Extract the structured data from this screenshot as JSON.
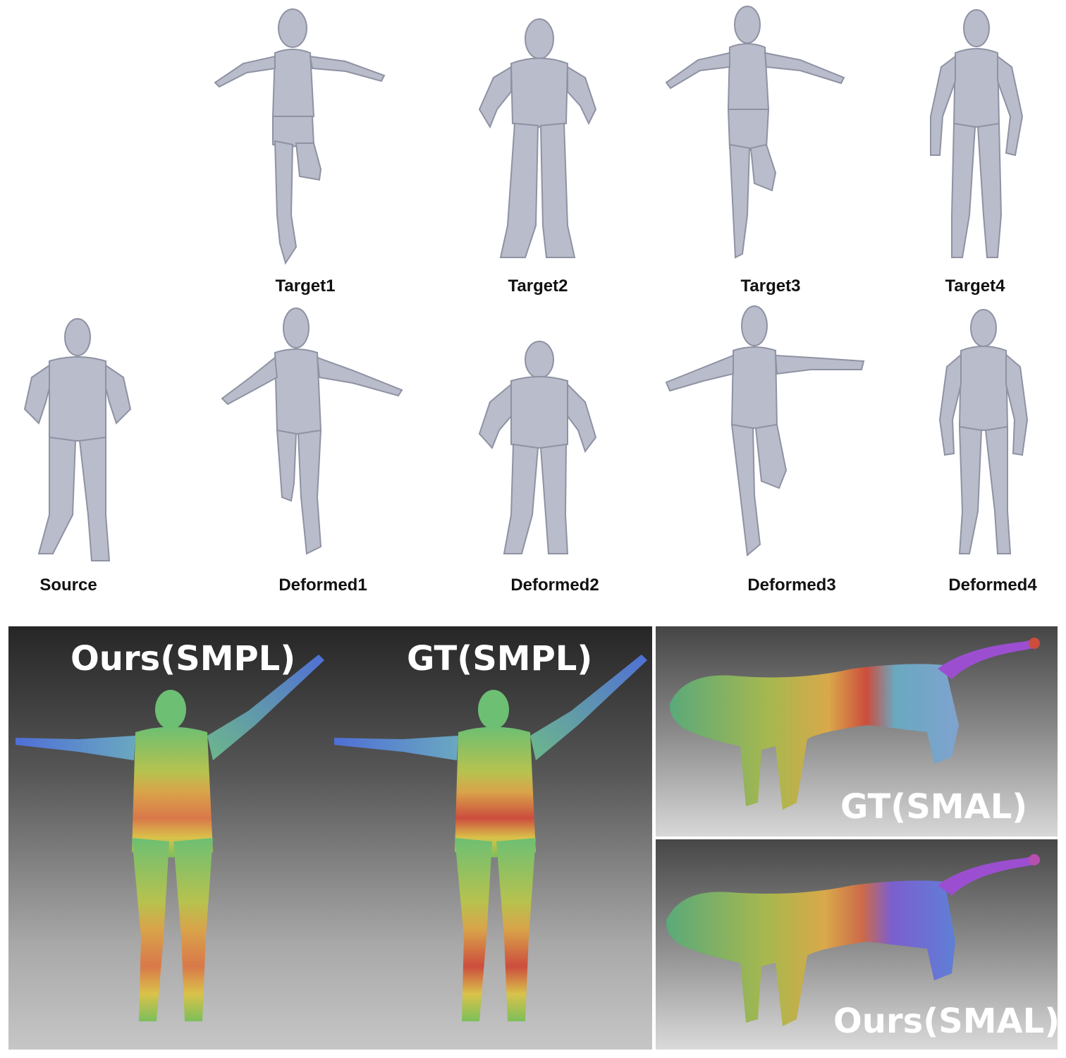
{
  "top_row": {
    "captions": [
      "Target1",
      "Target2",
      "Target3",
      "Target4"
    ]
  },
  "middle_row": {
    "captions": [
      "Source",
      "Deformed1",
      "Deformed2",
      "Deformed3",
      "Deformed4"
    ]
  },
  "bottom_panels": {
    "smpl_ours_label": "Ours(SMPL)",
    "smpl_gt_label": "GT(SMPL)",
    "smal_gt_label": "GT(SMAL)",
    "smal_ours_label": "Ours(SMAL)"
  },
  "colors": {
    "mesh_grey": "#b9bcca",
    "heat_green": "#6dbf73",
    "heat_yellow": "#d9c24a",
    "heat_orange": "#d98a4a",
    "heat_red": "#cc4d3d",
    "heat_blue": "#4f6fd6",
    "heat_purple": "#9b4fd0"
  }
}
